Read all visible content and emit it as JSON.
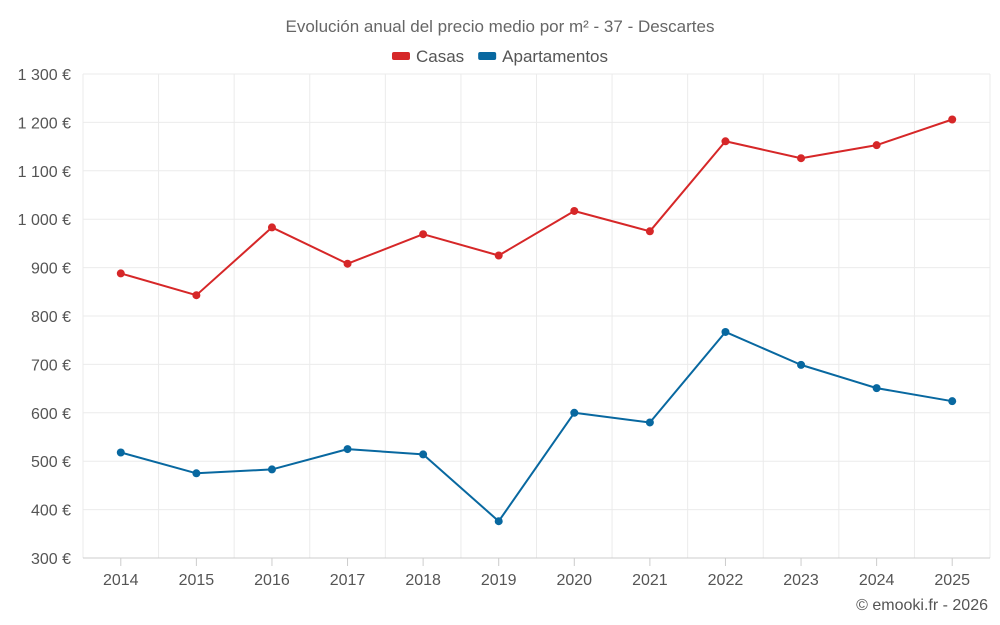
{
  "chart_data": {
    "type": "line",
    "title": "Evolución anual del precio medio por m² - 37 - Descartes",
    "categories": [
      "2014",
      "2015",
      "2016",
      "2017",
      "2018",
      "2019",
      "2020",
      "2021",
      "2022",
      "2023",
      "2024",
      "2025"
    ],
    "series": [
      {
        "name": "Casas",
        "color": "#d62728",
        "values": [
          888,
          843,
          983,
          908,
          969,
          925,
          1017,
          975,
          1161,
          1126,
          1153,
          1206
        ]
      },
      {
        "name": "Apartamentos",
        "color": "#0868a0",
        "values": [
          518,
          475,
          483,
          525,
          514,
          376,
          600,
          580,
          767,
          699,
          651,
          624
        ]
      }
    ],
    "ylim": [
      300,
      1300
    ],
    "yticks": [
      300,
      400,
      500,
      600,
      700,
      800,
      900,
      1000,
      1100,
      1200,
      1300
    ],
    "ytick_labels": [
      "300 €",
      "400 €",
      "500 €",
      "600 €",
      "700 €",
      "800 €",
      "900 €",
      "1 000 €",
      "1 100 €",
      "1 200 €",
      "1 300 €"
    ],
    "xlabel": "",
    "ylabel": "",
    "grid": true,
    "legend_position": "top-center",
    "credit": "© emooki.fr - 2026"
  }
}
